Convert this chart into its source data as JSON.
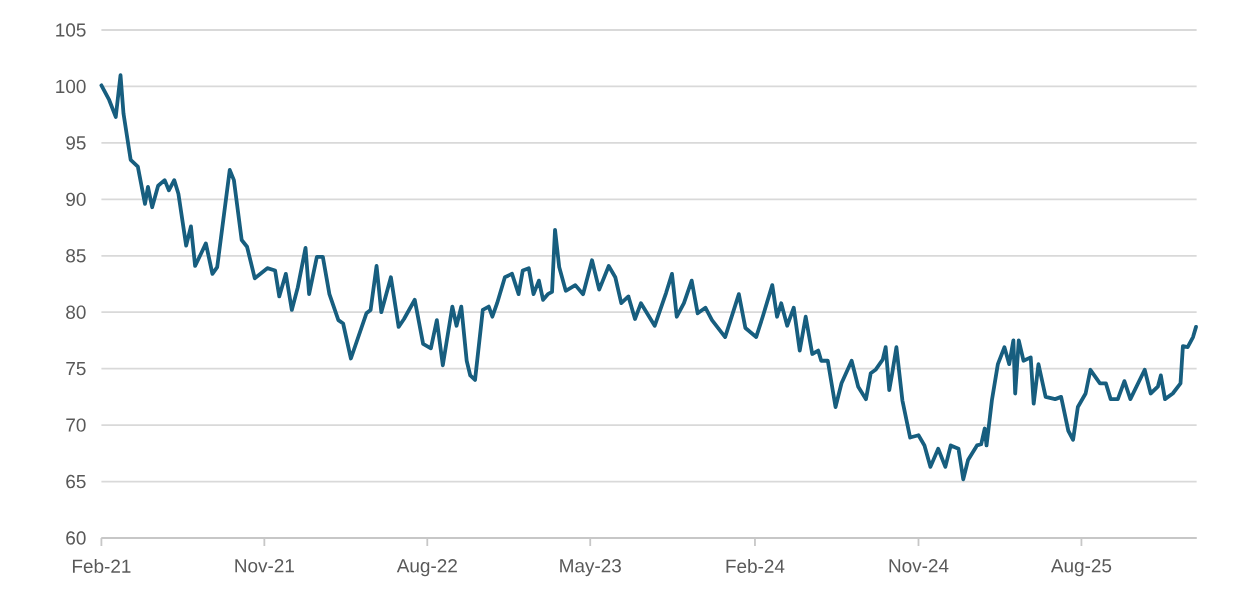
{
  "chart_data": {
    "type": "line",
    "xlim": [
      "2021-02-01",
      "2026-02-10"
    ],
    "ylim": [
      60,
      105
    ],
    "xticks": [
      {
        "value": "2021-02",
        "label": "Feb-21"
      },
      {
        "value": "2021-11",
        "label": "Nov-21"
      },
      {
        "value": "2022-08",
        "label": "Aug-22"
      },
      {
        "value": "2023-05",
        "label": "May-23"
      },
      {
        "value": "2024-02",
        "label": "Feb-24"
      },
      {
        "value": "2024-11",
        "label": "Nov-24"
      },
      {
        "value": "2025-08",
        "label": "Aug-25"
      }
    ],
    "yticks": [
      60,
      65,
      70,
      75,
      80,
      85,
      90,
      95,
      100,
      105
    ],
    "grid": "y",
    "marker": "none",
    "line_style": "solid",
    "series": [
      {
        "color": "#175e7f",
        "x": [
          "2021-02-01",
          "2021-02-14",
          "2021-02-25",
          "2021-03-05",
          "2021-03-10",
          "2021-03-22",
          "2021-04-03",
          "2021-04-15",
          "2021-04-20",
          "2021-04-27",
          "2021-05-07",
          "2021-05-18",
          "2021-05-25",
          "2021-06-03",
          "2021-06-10",
          "2021-06-23",
          "2021-07-01",
          "2021-07-08",
          "2021-07-18",
          "2021-07-26",
          "2021-08-06",
          "2021-08-14",
          "2021-09-04",
          "2021-09-11",
          "2021-09-24",
          "2021-10-03",
          "2021-10-16",
          "2021-11-06",
          "2021-11-19",
          "2021-11-26",
          "2021-12-07",
          "2021-12-17",
          "2021-12-27",
          "2022-01-09",
          "2022-01-15",
          "2022-01-28",
          "2022-02-07",
          "2022-02-18",
          "2022-03-05",
          "2022-03-13",
          "2022-03-26",
          "2022-04-21",
          "2022-04-28",
          "2022-05-08",
          "2022-05-16",
          "2022-06-01",
          "2022-06-14",
          "2022-06-23",
          "2022-07-11",
          "2022-07-25",
          "2022-08-07",
          "2022-08-17",
          "2022-08-27",
          "2022-09-12",
          "2022-09-19",
          "2022-09-27",
          "2022-10-06",
          "2022-10-12",
          "2022-10-20",
          "2022-11-02",
          "2022-11-12",
          "2022-11-18",
          "2022-11-26",
          "2022-12-09",
          "2022-12-21",
          "2023-01-01",
          "2023-01-08",
          "2023-01-18",
          "2023-01-26",
          "2023-02-04",
          "2023-02-11",
          "2023-02-19",
          "2023-02-26",
          "2023-03-03",
          "2023-03-10",
          "2023-03-21",
          "2023-04-06",
          "2023-04-19",
          "2023-05-04",
          "2023-05-16",
          "2023-06-01",
          "2023-06-12",
          "2023-06-22",
          "2023-07-04",
          "2023-07-15",
          "2023-07-25",
          "2023-08-17",
          "2023-09-05",
          "2023-09-15",
          "2023-09-23",
          "2023-10-05",
          "2023-10-18",
          "2023-10-28",
          "2023-11-10",
          "2023-11-21",
          "2023-12-13",
          "2024-01-05",
          "2024-01-16",
          "2024-02-03",
          "2024-02-14",
          "2024-03-01",
          "2024-03-09",
          "2024-03-16",
          "2024-03-26",
          "2024-04-06",
          "2024-04-16",
          "2024-04-26",
          "2024-05-07",
          "2024-05-17",
          "2024-05-22",
          "2024-06-02",
          "2024-06-15",
          "2024-06-25",
          "2024-07-12",
          "2024-07-23",
          "2024-08-05",
          "2024-08-13",
          "2024-08-21",
          "2024-09-02",
          "2024-09-07",
          "2024-09-13",
          "2024-09-18",
          "2024-09-25",
          "2024-10-05",
          "2024-10-18",
          "2024-11-01",
          "2024-11-11",
          "2024-11-21",
          "2024-12-04",
          "2024-12-16",
          "2024-12-25",
          "2025-01-07",
          "2025-01-15",
          "2025-01-23",
          "2025-02-07",
          "2025-02-14",
          "2025-02-20",
          "2025-02-23",
          "2025-03-04",
          "2025-03-14",
          "2025-03-25",
          "2025-04-02",
          "2025-04-09",
          "2025-04-12",
          "2025-04-18",
          "2025-04-26",
          "2025-05-08",
          "2025-05-13",
          "2025-05-21",
          "2025-06-02",
          "2025-06-18",
          "2025-06-28",
          "2025-07-10",
          "2025-07-18",
          "2025-07-26",
          "2025-08-08",
          "2025-08-16",
          "2025-09-01",
          "2025-09-11",
          "2025-09-19",
          "2025-10-01",
          "2025-10-12",
          "2025-10-22",
          "2025-11-15",
          "2025-11-25",
          "2025-12-07",
          "2025-12-12",
          "2025-12-19",
          "2026-01-01",
          "2026-01-14",
          "2026-01-18",
          "2026-01-26",
          "2026-02-04",
          "2026-02-09"
        ],
        "values": [
          100.1,
          98.8,
          97.3,
          101.0,
          97.6,
          93.5,
          92.9,
          89.6,
          91.1,
          89.3,
          91.2,
          91.7,
          90.8,
          91.7,
          90.5,
          85.9,
          87.6,
          84.1,
          85.2,
          86.1,
          83.4,
          84.0,
          92.6,
          91.7,
          86.4,
          85.8,
          83.0,
          83.9,
          83.7,
          81.4,
          83.4,
          80.2,
          82.2,
          85.7,
          81.6,
          84.9,
          84.9,
          81.6,
          79.3,
          79.0,
          75.9,
          79.9,
          80.2,
          84.1,
          80.0,
          83.1,
          78.7,
          79.4,
          81.1,
          77.2,
          76.8,
          79.3,
          75.3,
          80.5,
          78.8,
          80.5,
          75.7,
          74.4,
          74.0,
          80.2,
          80.5,
          79.6,
          80.8,
          83.1,
          83.4,
          81.6,
          83.7,
          83.9,
          81.6,
          82.8,
          81.1,
          81.6,
          81.8,
          87.3,
          84.0,
          81.9,
          82.4,
          81.6,
          84.6,
          82.0,
          84.1,
          83.1,
          80.8,
          81.4,
          79.4,
          80.8,
          78.8,
          81.7,
          83.4,
          79.6,
          80.8,
          82.8,
          79.9,
          80.4,
          79.3,
          77.8,
          81.6,
          78.6,
          77.8,
          79.6,
          82.4,
          79.6,
          80.8,
          78.8,
          80.4,
          76.6,
          79.6,
          76.3,
          76.6,
          75.7,
          75.7,
          71.6,
          73.7,
          75.7,
          73.4,
          72.3,
          74.6,
          74.9,
          75.8,
          76.9,
          73.1,
          74.6,
          76.9,
          72.2,
          68.9,
          69.1,
          68.2,
          66.3,
          67.9,
          66.3,
          68.2,
          67.9,
          65.2,
          66.9,
          68.2,
          68.3,
          69.7,
          68.2,
          72.2,
          75.4,
          76.9,
          75.4,
          77.5,
          72.8,
          77.5,
          75.7,
          76.0,
          71.9,
          75.4,
          72.5,
          72.3,
          72.5,
          69.5,
          68.7,
          71.6,
          72.8,
          74.9,
          73.7,
          73.7,
          72.3,
          72.3,
          73.9,
          72.3,
          74.9,
          72.8,
          73.4,
          74.4,
          72.3,
          72.8,
          73.7,
          77.0,
          76.9,
          77.8,
          78.7
        ]
      }
    ]
  }
}
